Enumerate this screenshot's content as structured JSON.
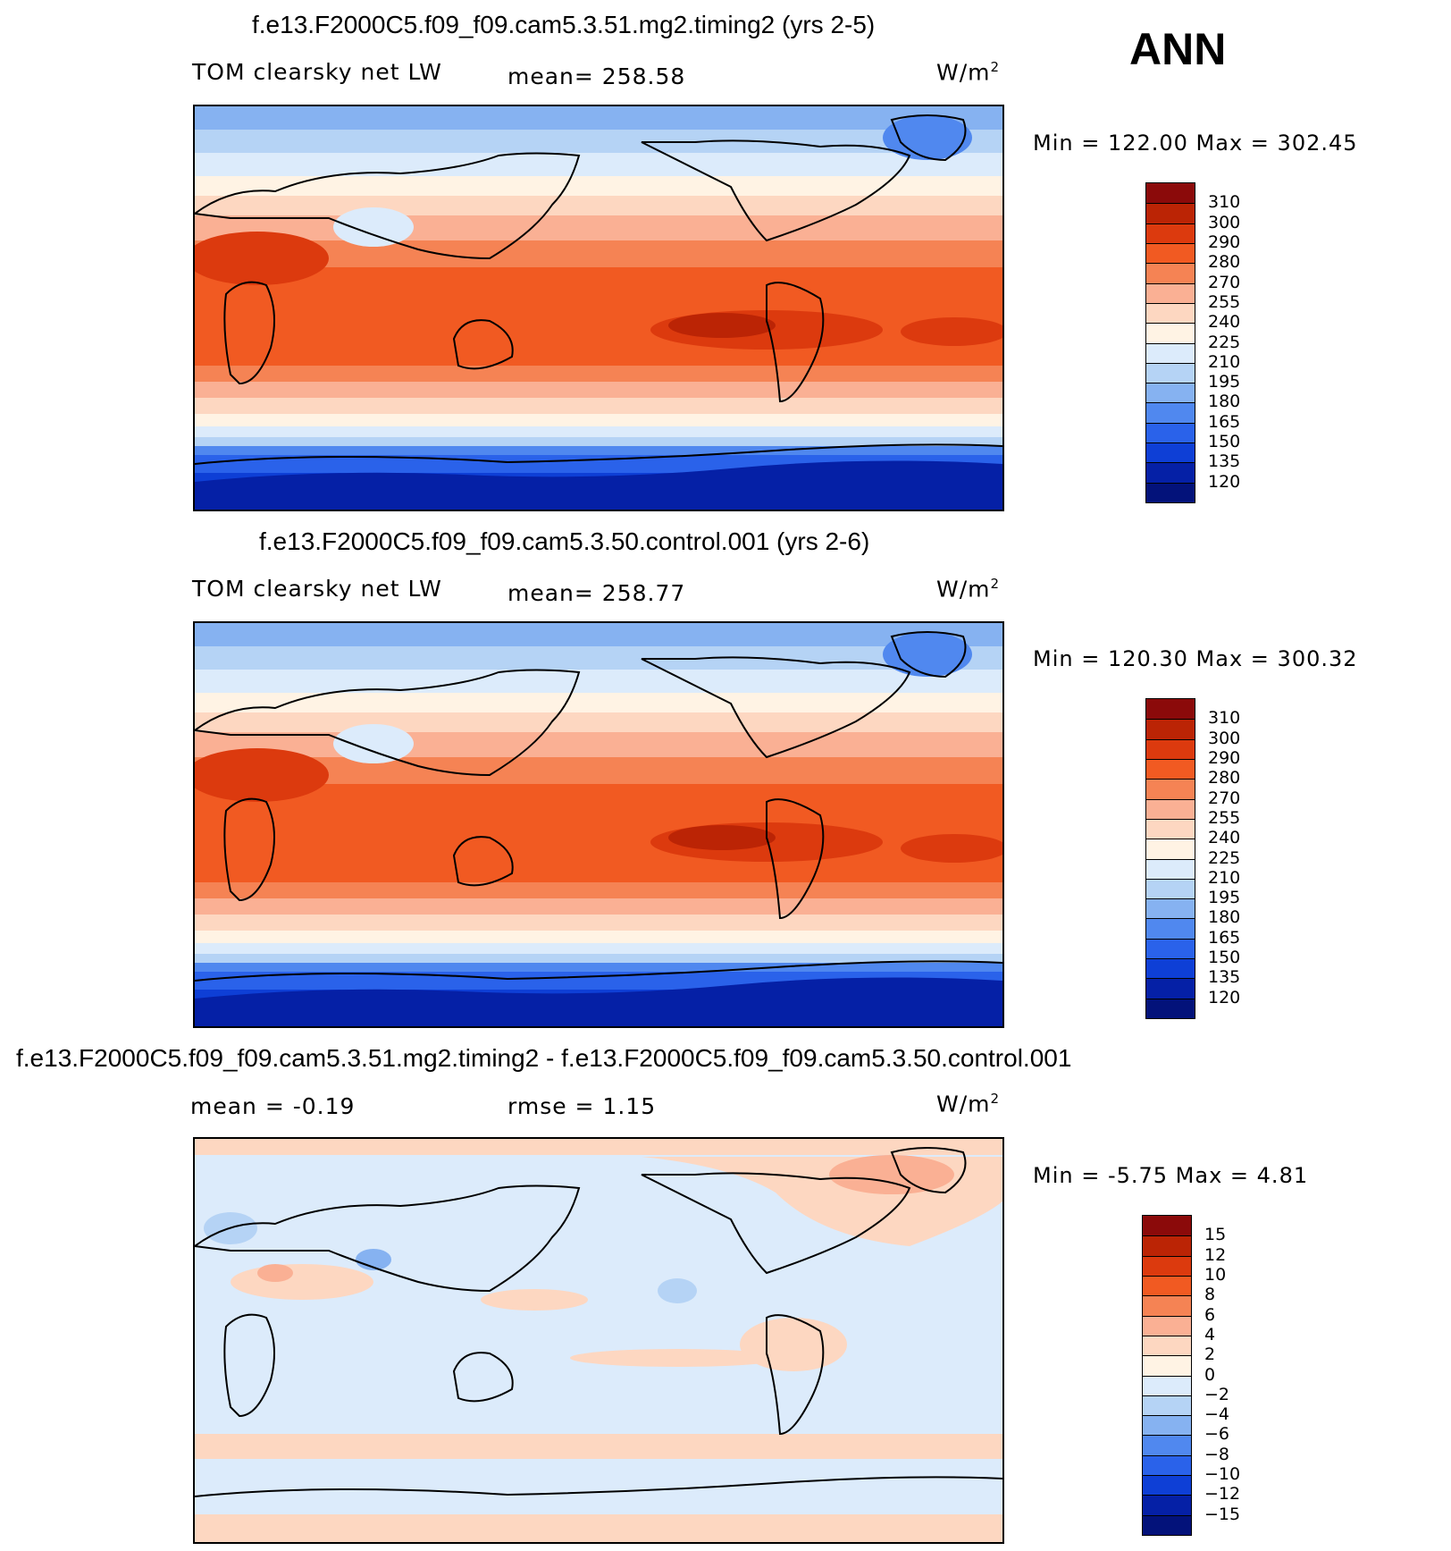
{
  "season": "ANN",
  "panels": [
    {
      "title": "f.e13.F2000C5.f09_f09.cam5.3.51.mg2.timing2 (yrs 2-5)",
      "left_label": "TOM clearsky net LW",
      "center_label": "mean= 258.58",
      "units": "W/m",
      "units_sup": "2",
      "minmax": "Min = 122.00 Max = 302.45",
      "levels": [
        "310",
        "300",
        "290",
        "280",
        "270",
        "255",
        "240",
        "225",
        "210",
        "195",
        "180",
        "165",
        "150",
        "135",
        "120"
      ],
      "colors": [
        "#8b0a0a",
        "#bb2405",
        "#dc3a0e",
        "#f15a22",
        "#f58354",
        "#fab094",
        "#fdd7c1",
        "#fff3e4",
        "#dcebfb",
        "#b5d3f5",
        "#86b2f1",
        "#5088ef",
        "#2a62ea",
        "#0e3fd6",
        "#0520a6",
        "#03127a"
      ]
    },
    {
      "title": "f.e13.F2000C5.f09_f09.cam5.3.50.control.001 (yrs 2-6)",
      "left_label": "TOM clearsky net LW",
      "center_label": "mean= 258.77",
      "units": "W/m",
      "units_sup": "2",
      "minmax": "Min = 120.30 Max = 300.32",
      "levels": [
        "310",
        "300",
        "290",
        "280",
        "270",
        "255",
        "240",
        "225",
        "210",
        "195",
        "180",
        "165",
        "150",
        "135",
        "120"
      ],
      "colors": [
        "#8b0a0a",
        "#bb2405",
        "#dc3a0e",
        "#f15a22",
        "#f58354",
        "#fab094",
        "#fdd7c1",
        "#fff3e4",
        "#dcebfb",
        "#b5d3f5",
        "#86b2f1",
        "#5088ef",
        "#2a62ea",
        "#0e3fd6",
        "#0520a6",
        "#03127a"
      ]
    },
    {
      "title": "f.e13.F2000C5.f09_f09.cam5.3.51.mg2.timing2 - f.e13.F2000C5.f09_f09.cam5.3.50.control.001",
      "left_label": "mean = -0.19",
      "center_label": "rmse = 1.15",
      "units": "W/m",
      "units_sup": "2",
      "minmax": "Min = -5.75 Max = 4.81",
      "levels": [
        "15",
        "12",
        "10",
        "8",
        "6",
        "4",
        "2",
        "0",
        "-2",
        "-4",
        "-6",
        "-8",
        "-10",
        "-12",
        "-15"
      ],
      "colors": [
        "#8b0a0a",
        "#bb2405",
        "#dc3a0e",
        "#f15a22",
        "#f58354",
        "#fab094",
        "#fdd7c1",
        "#fff3e4",
        "#dcebfb",
        "#b5d3f5",
        "#86b2f1",
        "#5088ef",
        "#2a62ea",
        "#0e3fd6",
        "#0520a6",
        "#03127a"
      ]
    }
  ]
}
